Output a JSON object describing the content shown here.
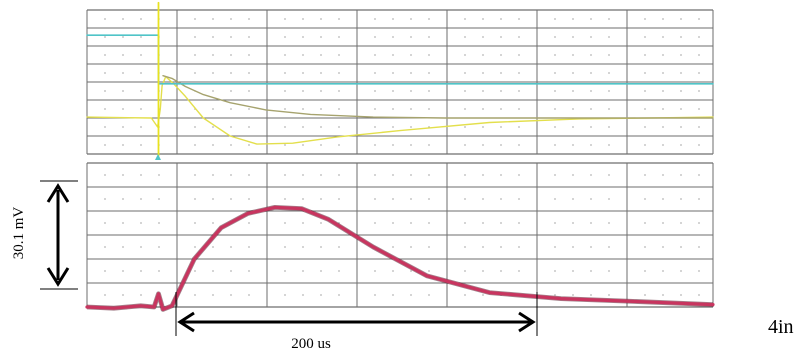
{
  "chart_data": [
    {
      "type": "line",
      "panel": "upper",
      "grid": true,
      "xlim": [
        0,
        7
      ],
      "ylim": [
        0,
        8
      ],
      "series": [
        {
          "color": "#e3df4c",
          "x": [
            0,
            0.72,
            0.79,
            0.82,
            0.84,
            0.88,
            0.97,
            1.1,
            1.3,
            1.6,
            1.9,
            2.3,
            2.8,
            3.5,
            4.5,
            5.5,
            7.0
          ],
          "y": [
            2.05,
            2.0,
            1.5,
            2.5,
            3.8,
            4.3,
            3.9,
            3.2,
            2.0,
            1.0,
            0.55,
            0.6,
            0.95,
            1.3,
            1.75,
            1.95,
            2.05
          ]
        },
        {
          "color": "#a6a36e",
          "x": [
            0.85,
            0.95,
            1.1,
            1.3,
            1.6,
            2.0,
            2.5,
            3.2,
            4.0,
            5.0,
            7.0
          ],
          "y": [
            4.35,
            4.2,
            3.75,
            3.3,
            2.85,
            2.45,
            2.2,
            2.05,
            2.0,
            2.0,
            2.0
          ]
        },
        {
          "color": "#4fc4c8",
          "x": [
            0,
            0.8,
            0.8,
            7.0
          ],
          "y": [
            6.6,
            6.6,
            3.9,
            3.9
          ]
        },
        {
          "color": "#e8e21f",
          "x": [
            0.8,
            0.8
          ],
          "y": [
            -0.1,
            8.4
          ]
        }
      ]
    },
    {
      "type": "line",
      "panel": "lower",
      "grid": true,
      "xlim": [
        0,
        7
      ],
      "ylim": [
        0,
        6
      ],
      "series": [
        {
          "color": "#c8355f",
          "x": [
            0,
            0.3,
            0.6,
            0.75,
            0.8,
            0.85,
            0.95,
            1.2,
            1.5,
            1.8,
            2.1,
            2.4,
            2.7,
            3.2,
            3.8,
            4.5,
            5.3,
            6.0,
            7.0
          ],
          "y": [
            0.0,
            -0.05,
            0.05,
            0.0,
            0.55,
            -0.1,
            0.05,
            2.0,
            3.3,
            3.9,
            4.15,
            4.1,
            3.65,
            2.5,
            1.3,
            0.6,
            0.35,
            0.25,
            0.1
          ]
        }
      ],
      "annotations": {
        "amplitude": "30.1 mV",
        "duration": "200 us"
      }
    }
  ],
  "corner_text": "4in"
}
